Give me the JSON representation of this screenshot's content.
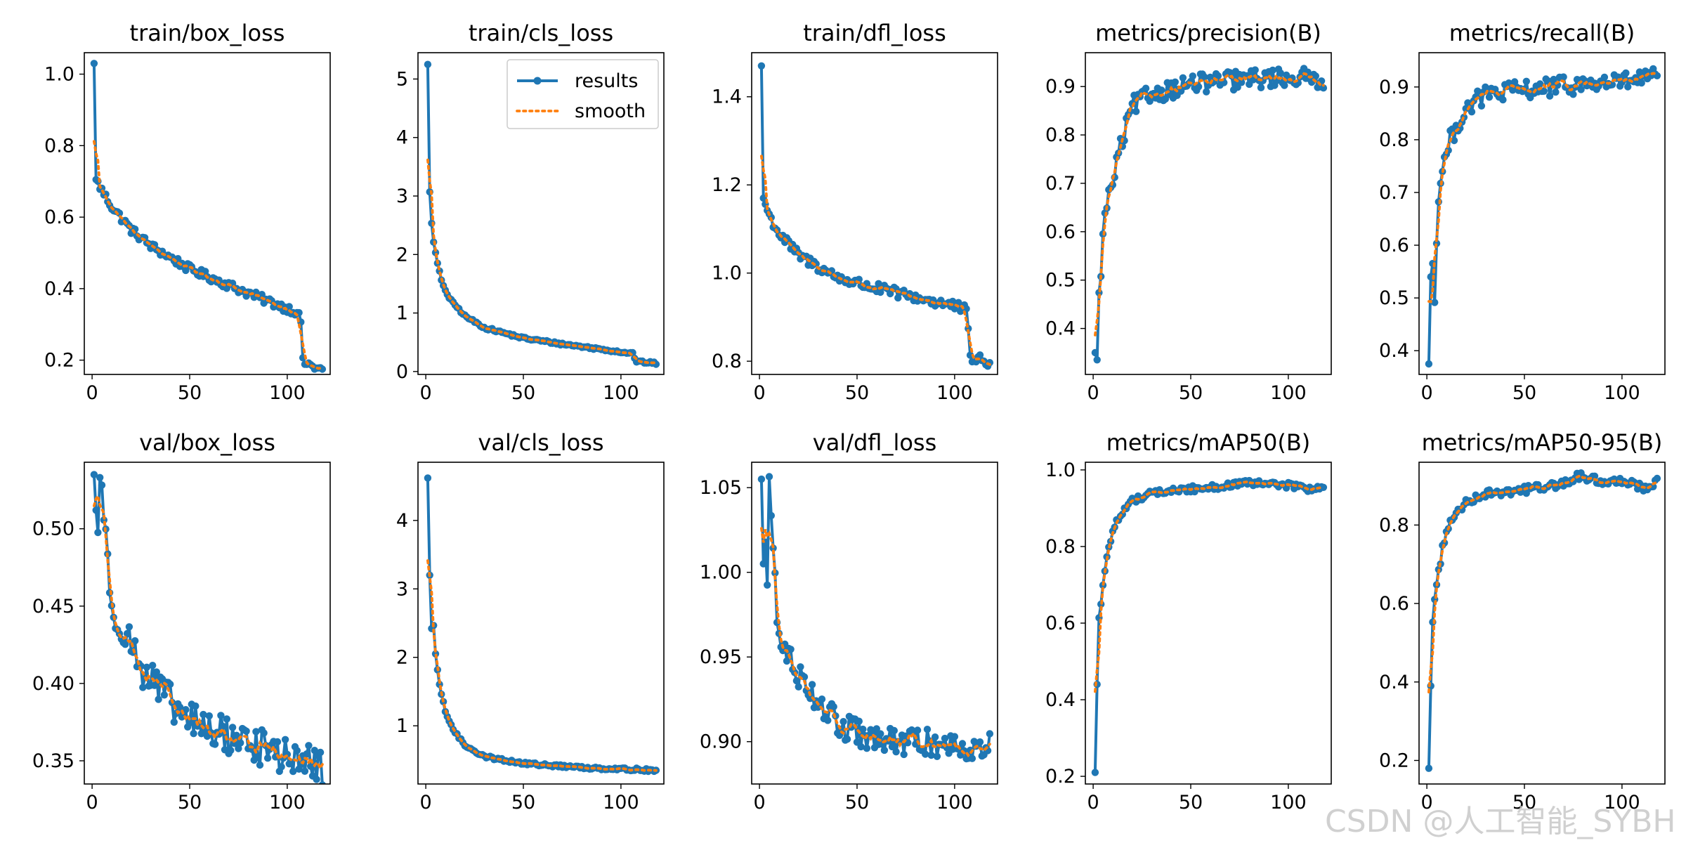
{
  "colors": {
    "results": "#1f77b4",
    "smooth": "#ff7f0e",
    "axes": "#000000"
  },
  "legend": {
    "location": "top-right",
    "panel": 1,
    "results_label": "results",
    "smooth_label": "smooth"
  },
  "watermark": "CSDN @人工智能_SYBH",
  "chart_data": [
    {
      "type": "line",
      "title": "train/box_loss",
      "xlim": [
        -4,
        122
      ],
      "ylim": [
        0.16,
        1.06
      ],
      "xticks": [
        0,
        50,
        100
      ],
      "yticks": [
        0.2,
        0.4,
        0.6,
        0.8,
        1.0
      ],
      "ytick_labels": [
        "0.2",
        "0.4",
        "0.6",
        "0.8",
        "1.0"
      ],
      "spec": {
        "points": [
          [
            1,
            1.03
          ],
          [
            2,
            0.705
          ],
          [
            5,
            0.675
          ],
          [
            10,
            0.63
          ],
          [
            20,
            0.565
          ],
          [
            30,
            0.52
          ],
          [
            50,
            0.455
          ],
          [
            70,
            0.41
          ],
          [
            90,
            0.365
          ],
          [
            105,
            0.335
          ],
          [
            107,
            0.31
          ],
          [
            108,
            0.195
          ],
          [
            112,
            0.185
          ],
          [
            118,
            0.172
          ]
        ],
        "noise": 0.012,
        "first": [
          1.03,
          0.705
        ]
      }
    },
    {
      "type": "line",
      "title": "train/cls_loss",
      "xlim": [
        -4,
        122
      ],
      "ylim": [
        -0.05,
        5.45
      ],
      "xticks": [
        0,
        50,
        100
      ],
      "yticks": [
        0,
        1,
        2,
        3,
        4,
        5
      ],
      "ytick_labels": [
        "0",
        "1",
        "2",
        "3",
        "4",
        "5"
      ],
      "spec": {
        "points": [
          [
            1,
            5.25
          ],
          [
            2,
            3.07
          ],
          [
            3,
            2.55
          ],
          [
            4,
            2.2
          ],
          [
            6,
            1.85
          ],
          [
            8,
            1.55
          ],
          [
            12,
            1.25
          ],
          [
            20,
            0.95
          ],
          [
            30,
            0.75
          ],
          [
            50,
            0.57
          ],
          [
            70,
            0.47
          ],
          [
            90,
            0.38
          ],
          [
            106,
            0.31
          ],
          [
            108,
            0.17
          ],
          [
            118,
            0.14
          ]
        ],
        "noise": 0.02,
        "first": [
          5.25,
          3.07
        ]
      }
    },
    {
      "type": "line",
      "title": "train/dfl_loss",
      "xlim": [
        -4,
        122
      ],
      "ylim": [
        0.77,
        1.5
      ],
      "xticks": [
        0,
        50,
        100
      ],
      "yticks": [
        0.8,
        1.0,
        1.2,
        1.4
      ],
      "ytick_labels": [
        "0.8",
        "1.0",
        "1.2",
        "1.4"
      ],
      "spec": {
        "points": [
          [
            1,
            1.47
          ],
          [
            2,
            1.17
          ],
          [
            5,
            1.13
          ],
          [
            10,
            1.09
          ],
          [
            20,
            1.04
          ],
          [
            40,
            0.99
          ],
          [
            60,
            0.965
          ],
          [
            80,
            0.945
          ],
          [
            100,
            0.925
          ],
          [
            106,
            0.915
          ],
          [
            108,
            0.81
          ],
          [
            118,
            0.795
          ]
        ],
        "noise": 0.012,
        "first": [
          1.47,
          1.17
        ]
      }
    },
    {
      "type": "line",
      "title": "metrics/precision(B)",
      "xlim": [
        -4,
        122
      ],
      "ylim": [
        0.305,
        0.97
      ],
      "xticks": [
        0,
        50,
        100
      ],
      "yticks": [
        0.4,
        0.5,
        0.6,
        0.7,
        0.8,
        0.9
      ],
      "ytick_labels": [
        "0.4",
        "0.5",
        "0.6",
        "0.7",
        "0.8",
        "0.9"
      ],
      "spec": {
        "points": [
          [
            1,
            0.35
          ],
          [
            2,
            0.335
          ],
          [
            3,
            0.46
          ],
          [
            5,
            0.59
          ],
          [
            7,
            0.66
          ],
          [
            10,
            0.7
          ],
          [
            13,
            0.76
          ],
          [
            16,
            0.8
          ],
          [
            20,
            0.86
          ],
          [
            30,
            0.885
          ],
          [
            50,
            0.905
          ],
          [
            80,
            0.915
          ],
          [
            100,
            0.92
          ],
          [
            118,
            0.915
          ]
        ],
        "noise": 0.02,
        "first": [
          0.35,
          0.335
        ]
      }
    },
    {
      "type": "line",
      "title": "metrics/recall(B)",
      "xlim": [
        -4,
        122
      ],
      "ylim": [
        0.355,
        0.965
      ],
      "xticks": [
        0,
        50,
        100
      ],
      "yticks": [
        0.4,
        0.5,
        0.6,
        0.7,
        0.8,
        0.9
      ],
      "ytick_labels": [
        "0.4",
        "0.5",
        "0.6",
        "0.7",
        "0.8",
        "0.9"
      ],
      "spec": {
        "points": [
          [
            1,
            0.375
          ],
          [
            2,
            0.54
          ],
          [
            3,
            0.575
          ],
          [
            4,
            0.485
          ],
          [
            5,
            0.6
          ],
          [
            6,
            0.7
          ],
          [
            8,
            0.745
          ],
          [
            12,
            0.8
          ],
          [
            16,
            0.83
          ],
          [
            20,
            0.86
          ],
          [
            30,
            0.885
          ],
          [
            50,
            0.895
          ],
          [
            80,
            0.905
          ],
          [
            100,
            0.91
          ],
          [
            118,
            0.92
          ]
        ],
        "noise": 0.018,
        "first": [
          0.375,
          0.54
        ]
      }
    },
    {
      "type": "line",
      "title": "val/box_loss",
      "xlim": [
        -4,
        122
      ],
      "ylim": [
        0.335,
        0.543
      ],
      "xticks": [
        0,
        50,
        100
      ],
      "yticks": [
        0.35,
        0.4,
        0.45,
        0.5
      ],
      "ytick_labels": [
        "0.35",
        "0.40",
        "0.45",
        "0.50"
      ],
      "spec": {
        "points": [
          [
            1,
            0.535
          ],
          [
            2,
            0.512
          ],
          [
            3,
            0.495
          ],
          [
            4,
            0.538
          ],
          [
            5,
            0.527
          ],
          [
            7,
            0.5
          ],
          [
            9,
            0.45
          ],
          [
            15,
            0.44
          ],
          [
            25,
            0.41
          ],
          [
            35,
            0.395
          ],
          [
            45,
            0.38
          ],
          [
            60,
            0.37
          ],
          [
            80,
            0.362
          ],
          [
            100,
            0.352
          ],
          [
            118,
            0.346
          ]
        ],
        "noise": 0.012,
        "first": [
          0.535,
          0.512
        ]
      }
    },
    {
      "type": "line",
      "title": "val/cls_loss",
      "xlim": [
        -4,
        122
      ],
      "ylim": [
        0.15,
        4.85
      ],
      "xticks": [
        0,
        50,
        100
      ],
      "yticks": [
        1,
        2,
        3,
        4
      ],
      "ytick_labels": [
        "1",
        "2",
        "3",
        "4"
      ],
      "spec": {
        "points": [
          [
            1,
            4.62
          ],
          [
            2,
            3.2
          ],
          [
            3,
            2.4
          ],
          [
            4,
            2.45
          ],
          [
            5,
            2.05
          ],
          [
            7,
            1.6
          ],
          [
            10,
            1.2
          ],
          [
            15,
            0.9
          ],
          [
            20,
            0.72
          ],
          [
            30,
            0.55
          ],
          [
            50,
            0.45
          ],
          [
            80,
            0.39
          ],
          [
            100,
            0.37
          ],
          [
            118,
            0.35
          ]
        ],
        "noise": 0.02,
        "first": [
          4.62,
          3.2
        ]
      }
    },
    {
      "type": "line",
      "title": "val/dfl_loss",
      "xlim": [
        -4,
        122
      ],
      "ylim": [
        0.875,
        1.065
      ],
      "xticks": [
        0,
        50,
        100
      ],
      "yticks": [
        0.9,
        0.95,
        1.0,
        1.05
      ],
      "ytick_labels": [
        "0.90",
        "0.95",
        "1.00",
        "1.05"
      ],
      "spec": {
        "points": [
          [
            1,
            1.055
          ],
          [
            2,
            1.005
          ],
          [
            3,
            1.02
          ],
          [
            4,
            0.992
          ],
          [
            5,
            1.057
          ],
          [
            7,
            1.01
          ],
          [
            10,
            0.96
          ],
          [
            20,
            0.94
          ],
          [
            30,
            0.925
          ],
          [
            40,
            0.91
          ],
          [
            60,
            0.9
          ],
          [
            80,
            0.9
          ],
          [
            100,
            0.898
          ],
          [
            118,
            0.897
          ]
        ],
        "noise": 0.008,
        "first": [
          1.055,
          1.005
        ]
      }
    },
    {
      "type": "line",
      "title": "metrics/mAP50(B)",
      "xlim": [
        -4,
        122
      ],
      "ylim": [
        0.18,
        1.02
      ],
      "xticks": [
        0,
        50,
        100
      ],
      "yticks": [
        0.2,
        0.4,
        0.6,
        0.8,
        1.0
      ],
      "ytick_labels": [
        "0.2",
        "0.4",
        "0.6",
        "0.8",
        "1.0"
      ],
      "spec": {
        "points": [
          [
            1,
            0.21
          ],
          [
            2,
            0.44
          ],
          [
            3,
            0.61
          ],
          [
            5,
            0.7
          ],
          [
            8,
            0.8
          ],
          [
            12,
            0.87
          ],
          [
            20,
            0.92
          ],
          [
            30,
            0.94
          ],
          [
            50,
            0.95
          ],
          [
            70,
            0.96
          ],
          [
            80,
            0.965
          ],
          [
            100,
            0.96
          ],
          [
            110,
            0.95
          ],
          [
            118,
            0.955
          ]
        ],
        "noise": 0.008,
        "first": [
          0.21,
          0.44
        ]
      }
    },
    {
      "type": "line",
      "title": "metrics/mAP50-95(B)",
      "xlim": [
        -4,
        122
      ],
      "ylim": [
        0.14,
        0.96
      ],
      "xticks": [
        0,
        50,
        100
      ],
      "yticks": [
        0.2,
        0.4,
        0.6,
        0.8
      ],
      "ytick_labels": [
        "0.2",
        "0.4",
        "0.6",
        "0.8"
      ],
      "spec": {
        "points": [
          [
            1,
            0.18
          ],
          [
            2,
            0.39
          ],
          [
            3,
            0.56
          ],
          [
            5,
            0.65
          ],
          [
            8,
            0.74
          ],
          [
            12,
            0.81
          ],
          [
            20,
            0.86
          ],
          [
            30,
            0.88
          ],
          [
            50,
            0.89
          ],
          [
            70,
            0.905
          ],
          [
            78,
            0.925
          ],
          [
            90,
            0.91
          ],
          [
            100,
            0.915
          ],
          [
            112,
            0.895
          ],
          [
            118,
            0.91
          ]
        ],
        "noise": 0.01,
        "first": [
          0.18,
          0.39
        ]
      }
    }
  ]
}
